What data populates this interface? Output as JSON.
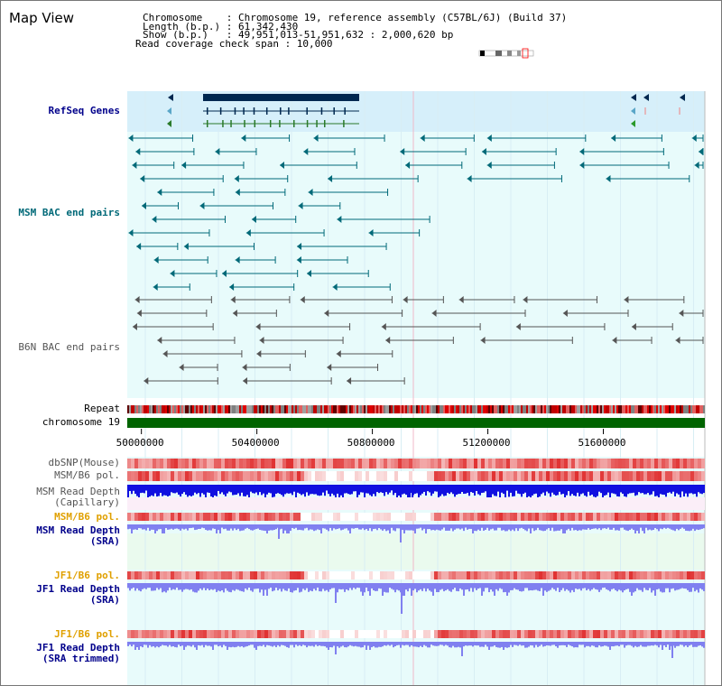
{
  "panel": {
    "title": "Map View",
    "info_lines": [
      "Chromosome    : Chromosome 19, reference assembly (C57BL/6J) (Build 37)",
      "Length (b.p.) : 61,342,430",
      "Show (b.p.)   : 49,951,013-51,951,632 : 2,000,620 bp",
      "Read coverage check span : 10,000"
    ]
  },
  "tracks": {
    "refseq": "RefSeq Genes",
    "msm_bac": "MSM BAC end pairs",
    "b6n_bac": "B6N BAC end pairs",
    "repeat": "Repeat",
    "chromosome": "chromosome 19",
    "dbsnp": "dbSNP(Mouse)",
    "msm_pol_cap": "MSM/B6 pol.",
    "msm_depth_cap_1": "MSM Read Depth",
    "msm_depth_cap_2": "(Capillary)",
    "msm_pol_sra": "MSM/B6 pol.",
    "msm_depth_sra_1": "MSM Read Depth",
    "msm_depth_sra_2": "(SRA)",
    "jf1_pol_sra": "JF1/B6 pol.",
    "jf1_depth_sra_1": "JF1 Read Depth",
    "jf1_depth_sra_2": "(SRA)",
    "jf1_pol_trim": "JF1/B6 pol.",
    "jf1_depth_trim_1": "JF1 Read Depth",
    "jf1_depth_trim_2": "(SRA trimmed)"
  },
  "axis": {
    "ticks": [
      {
        "value": 50000000,
        "label": "50000000"
      },
      {
        "value": 50400000,
        "label": "50400000"
      },
      {
        "value": 50800000,
        "label": "50800000"
      },
      {
        "value": 51200000,
        "label": "51200000"
      },
      {
        "value": 51600000,
        "label": "51600000"
      }
    ],
    "start": 49951013,
    "end": 51951632
  },
  "colors": {
    "refseq_bg": "#d6effa",
    "track_bg": "#e8fbfb",
    "gene_dark": "#002850",
    "msm_bac": "#006978",
    "b6n_bac": "#555555",
    "chromosome": "#006400",
    "depth_cap": "#1010e0",
    "depth_sra": "#8080f0",
    "pol_red": "#e03030"
  }
}
